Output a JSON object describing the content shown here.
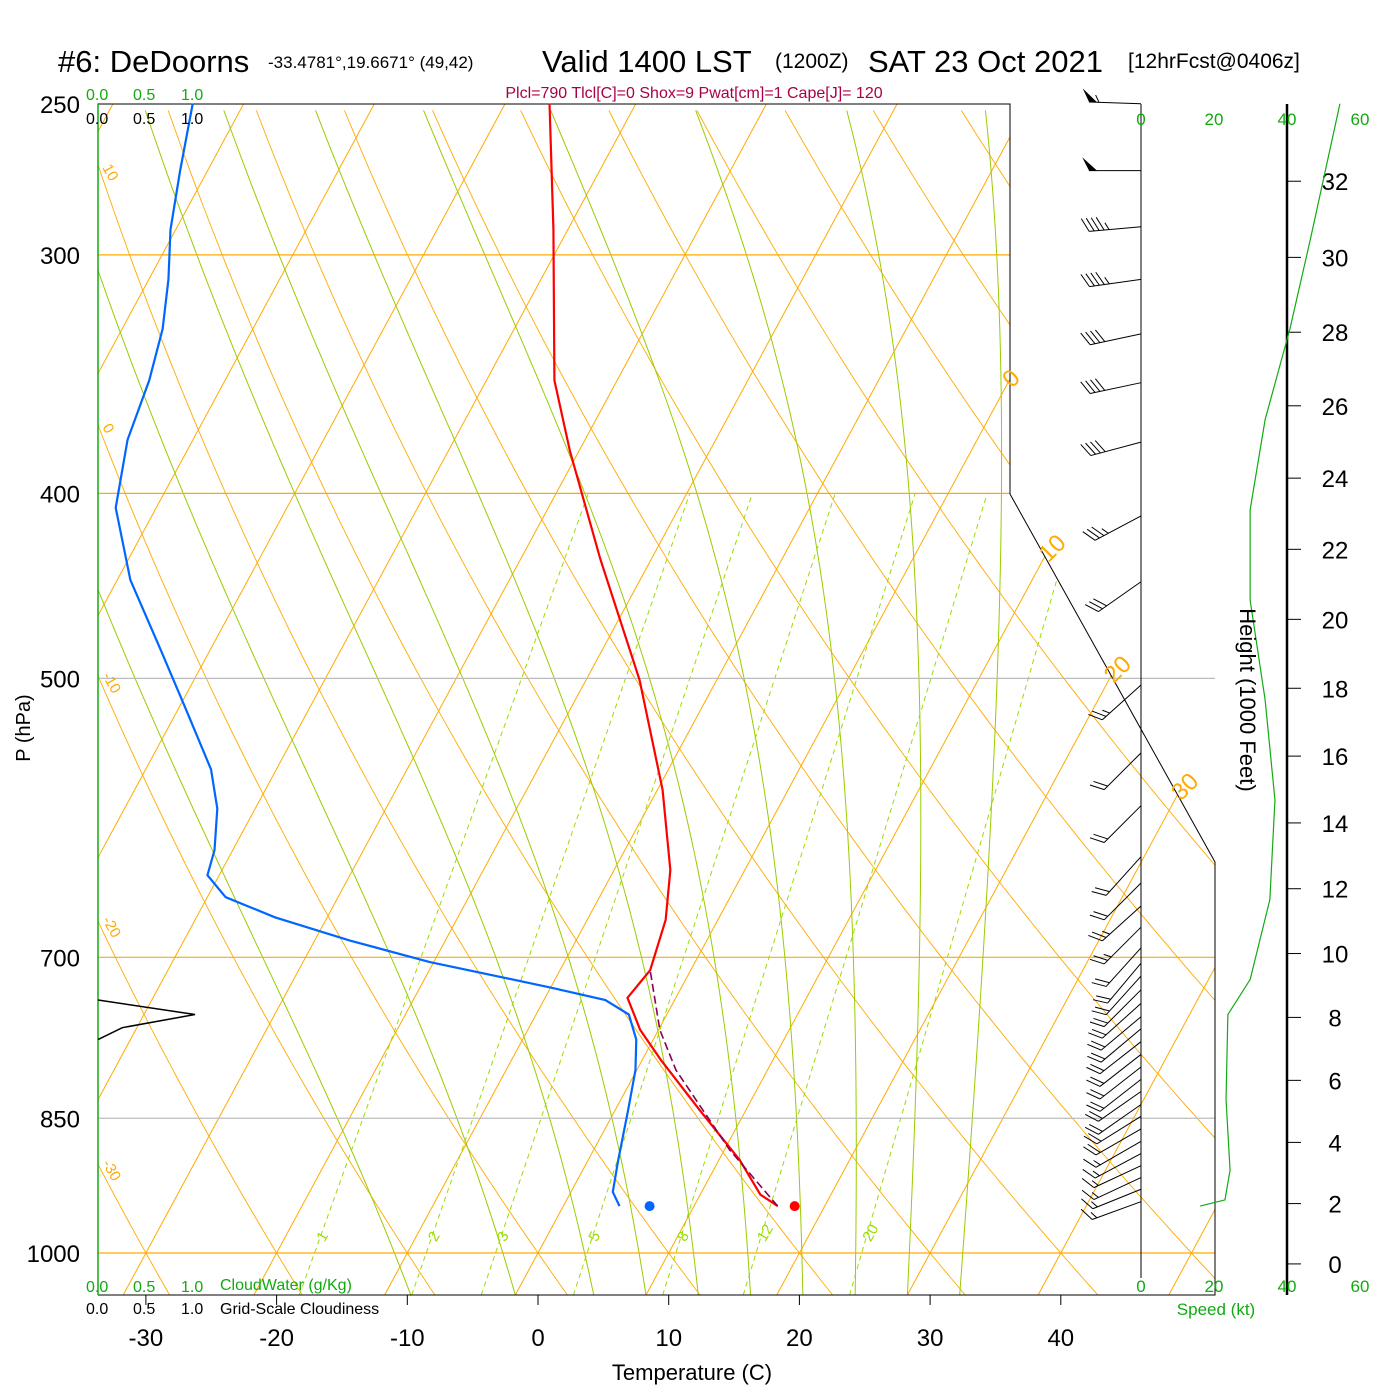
{
  "header": {
    "station": "#6: DeDoorns",
    "coords": "-33.4781°,19.6671° (49,42)",
    "valid": "Valid 1400 LST",
    "zulu": "(1200Z)",
    "date": "SAT 23 Oct 2021",
    "forecast": "[12hrFcst@0406z]",
    "indices": "Plcl=790 Tlcl[C]=0 Shox=9 Pwat[cm]=1 Cape[J]= 120"
  },
  "colors": {
    "temperature": "#ff0000",
    "dewpoint": "#0066ff",
    "parcel": "#880055",
    "isotherm": "#ffaa00",
    "moist_adiabat": "#99cc00",
    "mixing_ratio": "#99dd00",
    "speed": "#11aa11",
    "indices": "#aa0044"
  },
  "chart_data": {
    "type": "skew-t",
    "xlabel": "Temperature (C)",
    "ylabel": "P (hPa)",
    "right_ylabel": "Height (1000 Feet)",
    "pressure_ticks": [
      "250",
      "300",
      "400",
      "500",
      "700",
      "850",
      "1000"
    ],
    "pressure_values": [
      250,
      300,
      400,
      500,
      700,
      850,
      1000
    ],
    "temperature_ticks": [
      "-30",
      "-20",
      "-10",
      "0",
      "10",
      "20",
      "30",
      "40"
    ],
    "temperature_values": [
      -30,
      -20,
      -10,
      0,
      10,
      20,
      30,
      40
    ],
    "xlim": [
      -34,
      51
    ],
    "ylim_hpa": [
      1052,
      250
    ],
    "height_ticks": [
      "0",
      "2",
      "4",
      "6",
      "8",
      "10",
      "12",
      "14",
      "16",
      "18",
      "20",
      "22",
      "24",
      "26",
      "28",
      "30",
      "32"
    ],
    "dry_adiabat_labels": [
      "10",
      "0",
      "-10",
      "-20",
      "-30"
    ],
    "dry_adiabat_values": [
      10,
      0,
      -10,
      -20,
      -30
    ],
    "isotherm_labels": [
      "0",
      "10",
      "20",
      "30"
    ],
    "isotherm_label_values": [
      0,
      10,
      20,
      30
    ],
    "mixing_ratio_labels": [
      "1",
      "2",
      "3",
      "5",
      "8",
      "12",
      "20"
    ],
    "mixing_ratio_values": [
      1,
      2,
      3,
      5,
      8,
      12,
      20
    ],
    "temperature_profile": [
      [
        250,
        -46.6
      ],
      [
        291,
        -41.1
      ],
      [
        349,
        -34.8
      ],
      [
        380,
        -30.7
      ],
      [
        433,
        -23.9
      ],
      [
        501,
        -15.9
      ],
      [
        572,
        -9.6
      ],
      [
        630,
        -5.7
      ],
      [
        669,
        -4.0
      ],
      [
        711,
        -3.1
      ],
      [
        735,
        -3.7
      ],
      [
        764,
        -1.4
      ],
      [
        792,
        1.4
      ],
      [
        842,
        6.5
      ],
      [
        894,
        11.6
      ],
      [
        932,
        14.6
      ],
      [
        945,
        16.4
      ]
    ],
    "dewpoint_profile": [
      [
        250,
        -73.9
      ],
      [
        271,
        -72.1
      ],
      [
        291,
        -70.4
      ],
      [
        309,
        -68.5
      ],
      [
        328,
        -66.9
      ],
      [
        349,
        -65.8
      ],
      [
        375,
        -65.0
      ],
      [
        407,
        -63.1
      ],
      [
        444,
        -59.0
      ],
      [
        483,
        -53.8
      ],
      [
        519,
        -49.4
      ],
      [
        558,
        -45.0
      ],
      [
        585,
        -42.9
      ],
      [
        615,
        -41.4
      ],
      [
        634,
        -40.9
      ],
      [
        651,
        -38.6
      ],
      [
        667,
        -34.0
      ],
      [
        686,
        -27.3
      ],
      [
        704,
        -20.3
      ],
      [
        726,
        -10.0
      ],
      [
        737,
        -5.3
      ],
      [
        750,
        -2.9
      ],
      [
        773,
        -1.3
      ],
      [
        802,
        -0.1
      ],
      [
        842,
        1.0
      ],
      [
        894,
        2.3
      ],
      [
        929,
        3.2
      ],
      [
        945,
        4.3
      ]
    ],
    "parcel_profile": [
      [
        945,
        16.4
      ],
      [
        883,
        10.4
      ],
      [
        802,
        3.0
      ],
      [
        764,
        0.1
      ],
      [
        711,
        -3.1
      ]
    ],
    "surface_temperature": [
      945,
      17.7
    ],
    "surface_dewpoint": [
      945,
      6.6
    ],
    "cloudiness": [
      [
        737,
        0
      ],
      [
        750,
        1.0
      ],
      [
        762,
        0.25
      ],
      [
        773,
        0
      ]
    ],
    "wind_speed_profile": [
      [
        250,
        54.5
      ],
      [
        295,
        46.3
      ],
      [
        328,
        40.8
      ],
      [
        366,
        34
      ],
      [
        408,
        29.9
      ],
      [
        455,
        29.9
      ],
      [
        513,
        34
      ],
      [
        579,
        36.7
      ],
      [
        653,
        35.3
      ],
      [
        719,
        29.9
      ],
      [
        750,
        23.8
      ],
      [
        831,
        23.3
      ],
      [
        905,
        24.4
      ],
      [
        938,
        23
      ],
      [
        945,
        16.2
      ]
    ],
    "wind_barbs": [
      [
        250,
        272,
        55
      ],
      [
        271,
        270,
        50
      ],
      [
        290,
        265,
        45
      ],
      [
        309,
        262,
        45
      ],
      [
        330,
        258,
        40
      ],
      [
        350,
        258,
        40
      ],
      [
        376,
        255,
        40
      ],
      [
        411,
        242,
        35
      ],
      [
        445,
        235,
        30
      ],
      [
        504,
        228,
        25
      ],
      [
        547,
        225,
        20
      ],
      [
        583,
        225,
        20
      ],
      [
        620,
        222,
        20
      ],
      [
        640,
        225,
        20
      ],
      [
        658,
        228,
        25
      ],
      [
        675,
        225,
        25
      ],
      [
        692,
        222,
        20
      ],
      [
        705,
        220,
        20
      ],
      [
        716,
        222,
        20
      ],
      [
        728,
        225,
        20
      ],
      [
        740,
        228,
        20
      ],
      [
        752,
        230,
        20
      ],
      [
        763,
        230,
        20
      ],
      [
        775,
        232,
        20
      ],
      [
        787,
        232,
        20
      ],
      [
        799,
        232,
        20
      ],
      [
        811,
        232,
        20
      ],
      [
        823,
        235,
        20
      ],
      [
        836,
        235,
        20
      ],
      [
        848,
        238,
        20
      ],
      [
        861,
        240,
        20
      ],
      [
        874,
        240,
        15
      ],
      [
        887,
        242,
        15
      ],
      [
        900,
        245,
        15
      ],
      [
        913,
        245,
        15
      ],
      [
        926,
        248,
        15
      ],
      [
        940,
        250,
        15
      ]
    ]
  },
  "scales": {
    "cloudwater_ticks": [
      "0.0",
      "0.5",
      "1.0"
    ],
    "cloudwater_label": "CloudWater (g/Kg)",
    "cloudiness_ticks": [
      "0.0",
      "0.5",
      "1.0"
    ],
    "cloudiness_label": "Grid-Scale Cloudiness",
    "speed_ticks": [
      "0",
      "20",
      "40",
      "60"
    ],
    "speed_label": "Speed (kt)"
  }
}
